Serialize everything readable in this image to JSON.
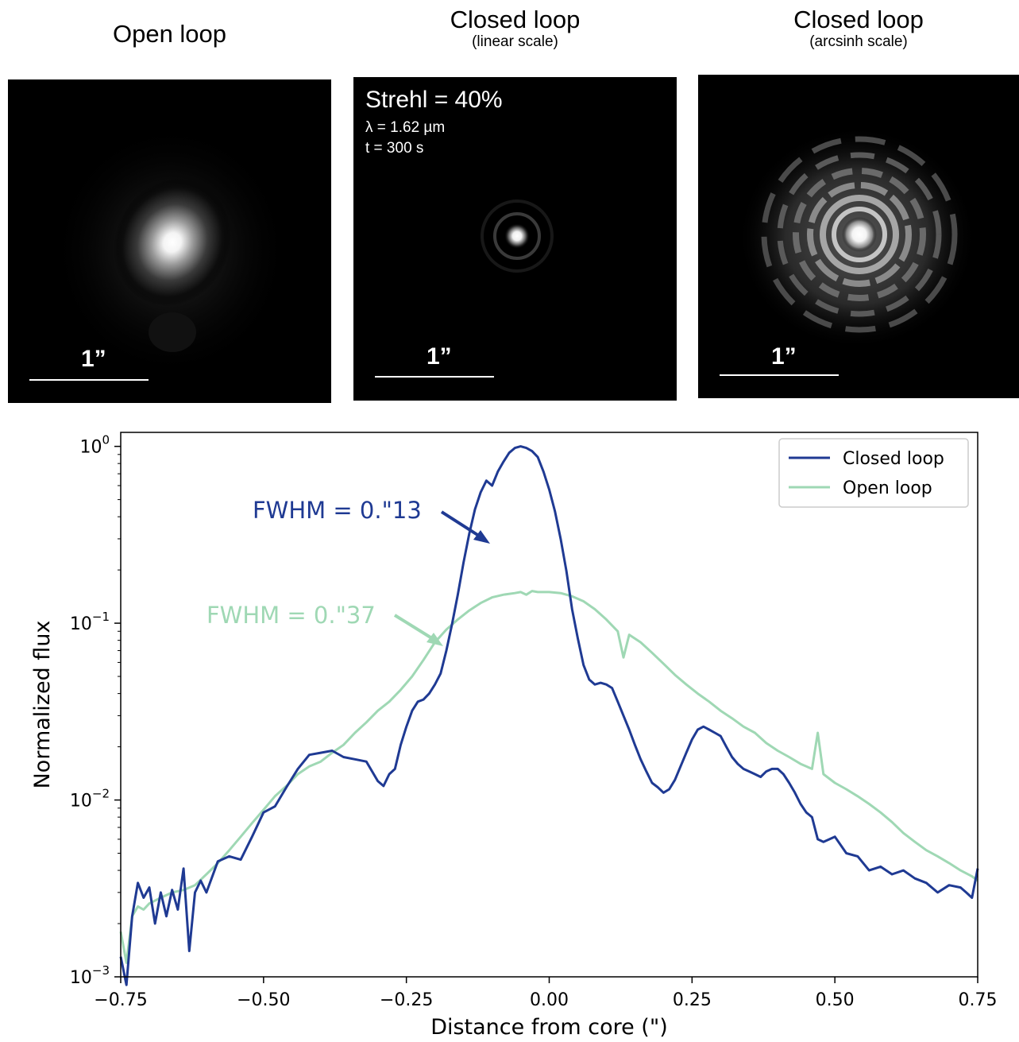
{
  "panels": [
    {
      "title": "Open loop",
      "subtitle": "",
      "scale_label": "1”"
    },
    {
      "title": "Closed loop",
      "subtitle": "(linear scale)",
      "scale_label": "1”",
      "overlay": {
        "strehl": "Strehl = 40%",
        "wavelength": "λ = 1.62 µm",
        "exposure": "t = 300 s"
      }
    },
    {
      "title": "Closed loop",
      "subtitle": "(arcsinh scale)",
      "scale_label": "1”"
    }
  ],
  "colors": {
    "closed": "#1f3a93",
    "open": "#9fd8b4"
  },
  "chart_data": {
    "type": "line",
    "xlabel": "Distance from core (\")",
    "ylabel": "Normalized flux",
    "xlim": [
      -0.75,
      0.75
    ],
    "ylim": [
      0.001,
      1.2
    ],
    "yscale": "log",
    "xticks": [
      -0.75,
      -0.5,
      -0.25,
      0.0,
      0.25,
      0.5,
      0.75
    ],
    "xtick_labels": [
      "−0.75",
      "−0.50",
      "−0.25",
      "0.00",
      "0.25",
      "0.50",
      "0.75"
    ],
    "yticks": [
      0.001,
      0.01,
      0.1,
      1
    ],
    "ytick_labels": [
      {
        "base": "10",
        "exp": "−3"
      },
      {
        "base": "10",
        "exp": "−2"
      },
      {
        "base": "10",
        "exp": "−1"
      },
      {
        "base": "10",
        "exp": "0"
      }
    ],
    "legend_position": "top-right",
    "annotations": [
      {
        "text": "FWHM = 0.\"13",
        "series": "Closed loop"
      },
      {
        "text": "FWHM = 0.\"37",
        "series": "Open loop"
      }
    ],
    "series": [
      {
        "name": "Closed loop",
        "x": [
          -0.75,
          -0.74,
          -0.73,
          -0.72,
          -0.71,
          -0.7,
          -0.69,
          -0.68,
          -0.67,
          -0.66,
          -0.65,
          -0.64,
          -0.63,
          -0.62,
          -0.61,
          -0.6,
          -0.58,
          -0.56,
          -0.54,
          -0.52,
          -0.5,
          -0.48,
          -0.46,
          -0.44,
          -0.42,
          -0.4,
          -0.38,
          -0.36,
          -0.34,
          -0.32,
          -0.3,
          -0.29,
          -0.28,
          -0.27,
          -0.26,
          -0.25,
          -0.24,
          -0.23,
          -0.22,
          -0.21,
          -0.2,
          -0.19,
          -0.18,
          -0.17,
          -0.16,
          -0.15,
          -0.14,
          -0.13,
          -0.12,
          -0.11,
          -0.1,
          -0.09,
          -0.08,
          -0.07,
          -0.06,
          -0.05,
          -0.04,
          -0.03,
          -0.02,
          -0.01,
          0.0,
          0.01,
          0.02,
          0.03,
          0.04,
          0.05,
          0.06,
          0.07,
          0.08,
          0.09,
          0.1,
          0.11,
          0.12,
          0.13,
          0.14,
          0.15,
          0.16,
          0.17,
          0.18,
          0.19,
          0.2,
          0.21,
          0.22,
          0.23,
          0.24,
          0.25,
          0.26,
          0.27,
          0.28,
          0.29,
          0.3,
          0.31,
          0.32,
          0.33,
          0.34,
          0.35,
          0.36,
          0.37,
          0.38,
          0.39,
          0.4,
          0.41,
          0.42,
          0.43,
          0.44,
          0.45,
          0.46,
          0.47,
          0.48,
          0.5,
          0.52,
          0.54,
          0.56,
          0.58,
          0.6,
          0.62,
          0.64,
          0.66,
          0.68,
          0.7,
          0.72,
          0.73,
          0.74,
          0.75
        ],
        "y": [
          0.0013,
          0.0009,
          0.0022,
          0.0034,
          0.0028,
          0.0032,
          0.002,
          0.003,
          0.0022,
          0.0031,
          0.0024,
          0.0041,
          0.0014,
          0.003,
          0.0035,
          0.003,
          0.0045,
          0.0048,
          0.0046,
          0.0062,
          0.0085,
          0.0092,
          0.0118,
          0.015,
          0.018,
          0.0185,
          0.019,
          0.0175,
          0.017,
          0.0165,
          0.0128,
          0.012,
          0.014,
          0.015,
          0.0205,
          0.026,
          0.032,
          0.036,
          0.037,
          0.04,
          0.045,
          0.052,
          0.07,
          0.099,
          0.145,
          0.22,
          0.32,
          0.44,
          0.55,
          0.64,
          0.6,
          0.72,
          0.82,
          0.92,
          0.98,
          1.0,
          0.98,
          0.94,
          0.87,
          0.72,
          0.57,
          0.43,
          0.3,
          0.198,
          0.12,
          0.082,
          0.058,
          0.048,
          0.045,
          0.046,
          0.045,
          0.043,
          0.036,
          0.03,
          0.025,
          0.0205,
          0.017,
          0.0145,
          0.0125,
          0.0118,
          0.011,
          0.0115,
          0.013,
          0.0155,
          0.0185,
          0.022,
          0.025,
          0.026,
          0.025,
          0.024,
          0.023,
          0.02,
          0.0175,
          0.016,
          0.015,
          0.0145,
          0.014,
          0.0135,
          0.0145,
          0.015,
          0.015,
          0.014,
          0.0125,
          0.011,
          0.0095,
          0.0085,
          0.008,
          0.006,
          0.0058,
          0.0062,
          0.005,
          0.0048,
          0.004,
          0.0042,
          0.0038,
          0.004,
          0.0036,
          0.0034,
          0.003,
          0.0033,
          0.0032,
          0.003,
          0.0028,
          0.0041
        ],
        "color": "#1f3a93"
      },
      {
        "name": "Open loop",
        "x": [
          -0.75,
          -0.74,
          -0.73,
          -0.72,
          -0.71,
          -0.7,
          -0.68,
          -0.66,
          -0.64,
          -0.62,
          -0.6,
          -0.58,
          -0.56,
          -0.54,
          -0.52,
          -0.5,
          -0.48,
          -0.46,
          -0.44,
          -0.42,
          -0.4,
          -0.38,
          -0.36,
          -0.34,
          -0.32,
          -0.3,
          -0.28,
          -0.26,
          -0.24,
          -0.22,
          -0.2,
          -0.18,
          -0.16,
          -0.14,
          -0.12,
          -0.1,
          -0.08,
          -0.06,
          -0.05,
          -0.04,
          -0.03,
          -0.02,
          0.0,
          0.02,
          0.04,
          0.06,
          0.08,
          0.1,
          0.12,
          0.13,
          0.14,
          0.16,
          0.18,
          0.2,
          0.22,
          0.24,
          0.26,
          0.28,
          0.3,
          0.32,
          0.34,
          0.36,
          0.38,
          0.4,
          0.42,
          0.44,
          0.46,
          0.47,
          0.48,
          0.5,
          0.52,
          0.54,
          0.56,
          0.58,
          0.6,
          0.62,
          0.64,
          0.66,
          0.68,
          0.7,
          0.72,
          0.74,
          0.75
        ],
        "y": [
          0.0018,
          0.0012,
          0.0022,
          0.0025,
          0.0024,
          0.0026,
          0.0028,
          0.003,
          0.0031,
          0.0033,
          0.0038,
          0.0044,
          0.0052,
          0.0062,
          0.0074,
          0.0088,
          0.0105,
          0.012,
          0.014,
          0.0155,
          0.0165,
          0.0185,
          0.0205,
          0.024,
          0.0275,
          0.032,
          0.036,
          0.042,
          0.05,
          0.062,
          0.078,
          0.092,
          0.105,
          0.118,
          0.13,
          0.14,
          0.145,
          0.148,
          0.15,
          0.145,
          0.152,
          0.15,
          0.15,
          0.148,
          0.142,
          0.133,
          0.12,
          0.105,
          0.09,
          0.064,
          0.086,
          0.078,
          0.068,
          0.059,
          0.051,
          0.045,
          0.04,
          0.036,
          0.032,
          0.029,
          0.026,
          0.024,
          0.021,
          0.019,
          0.0175,
          0.016,
          0.015,
          0.024,
          0.014,
          0.0125,
          0.0115,
          0.0105,
          0.0095,
          0.0085,
          0.0075,
          0.0065,
          0.0058,
          0.0052,
          0.0048,
          0.0044,
          0.004,
          0.0037,
          0.0035
        ],
        "color": "#9fd8b4"
      }
    ]
  }
}
